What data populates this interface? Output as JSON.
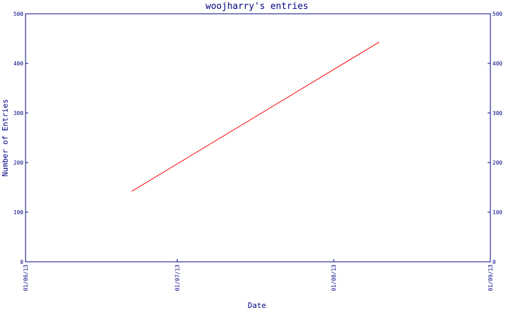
{
  "chart_data": {
    "type": "line",
    "title": "woojharry's entries",
    "xlabel": "Date",
    "ylabel": "Number of Entries",
    "x_ticks": [
      "01/06/13",
      "01/07/13",
      "01/08/13",
      "01/09/13"
    ],
    "y_ticks": [
      0,
      100,
      200,
      300,
      400,
      500
    ],
    "ylim": [
      0,
      500
    ],
    "xlim": [
      "2013-06-01",
      "2013-09-01"
    ],
    "grid": false,
    "series": [
      {
        "x": [
          "2013-06-22",
          "2013-08-10"
        ],
        "values": [
          142,
          443
        ],
        "color": "#ff0000"
      }
    ],
    "colors": {
      "axis": "#000080",
      "text": "#000080",
      "background": "#ffffff"
    }
  }
}
